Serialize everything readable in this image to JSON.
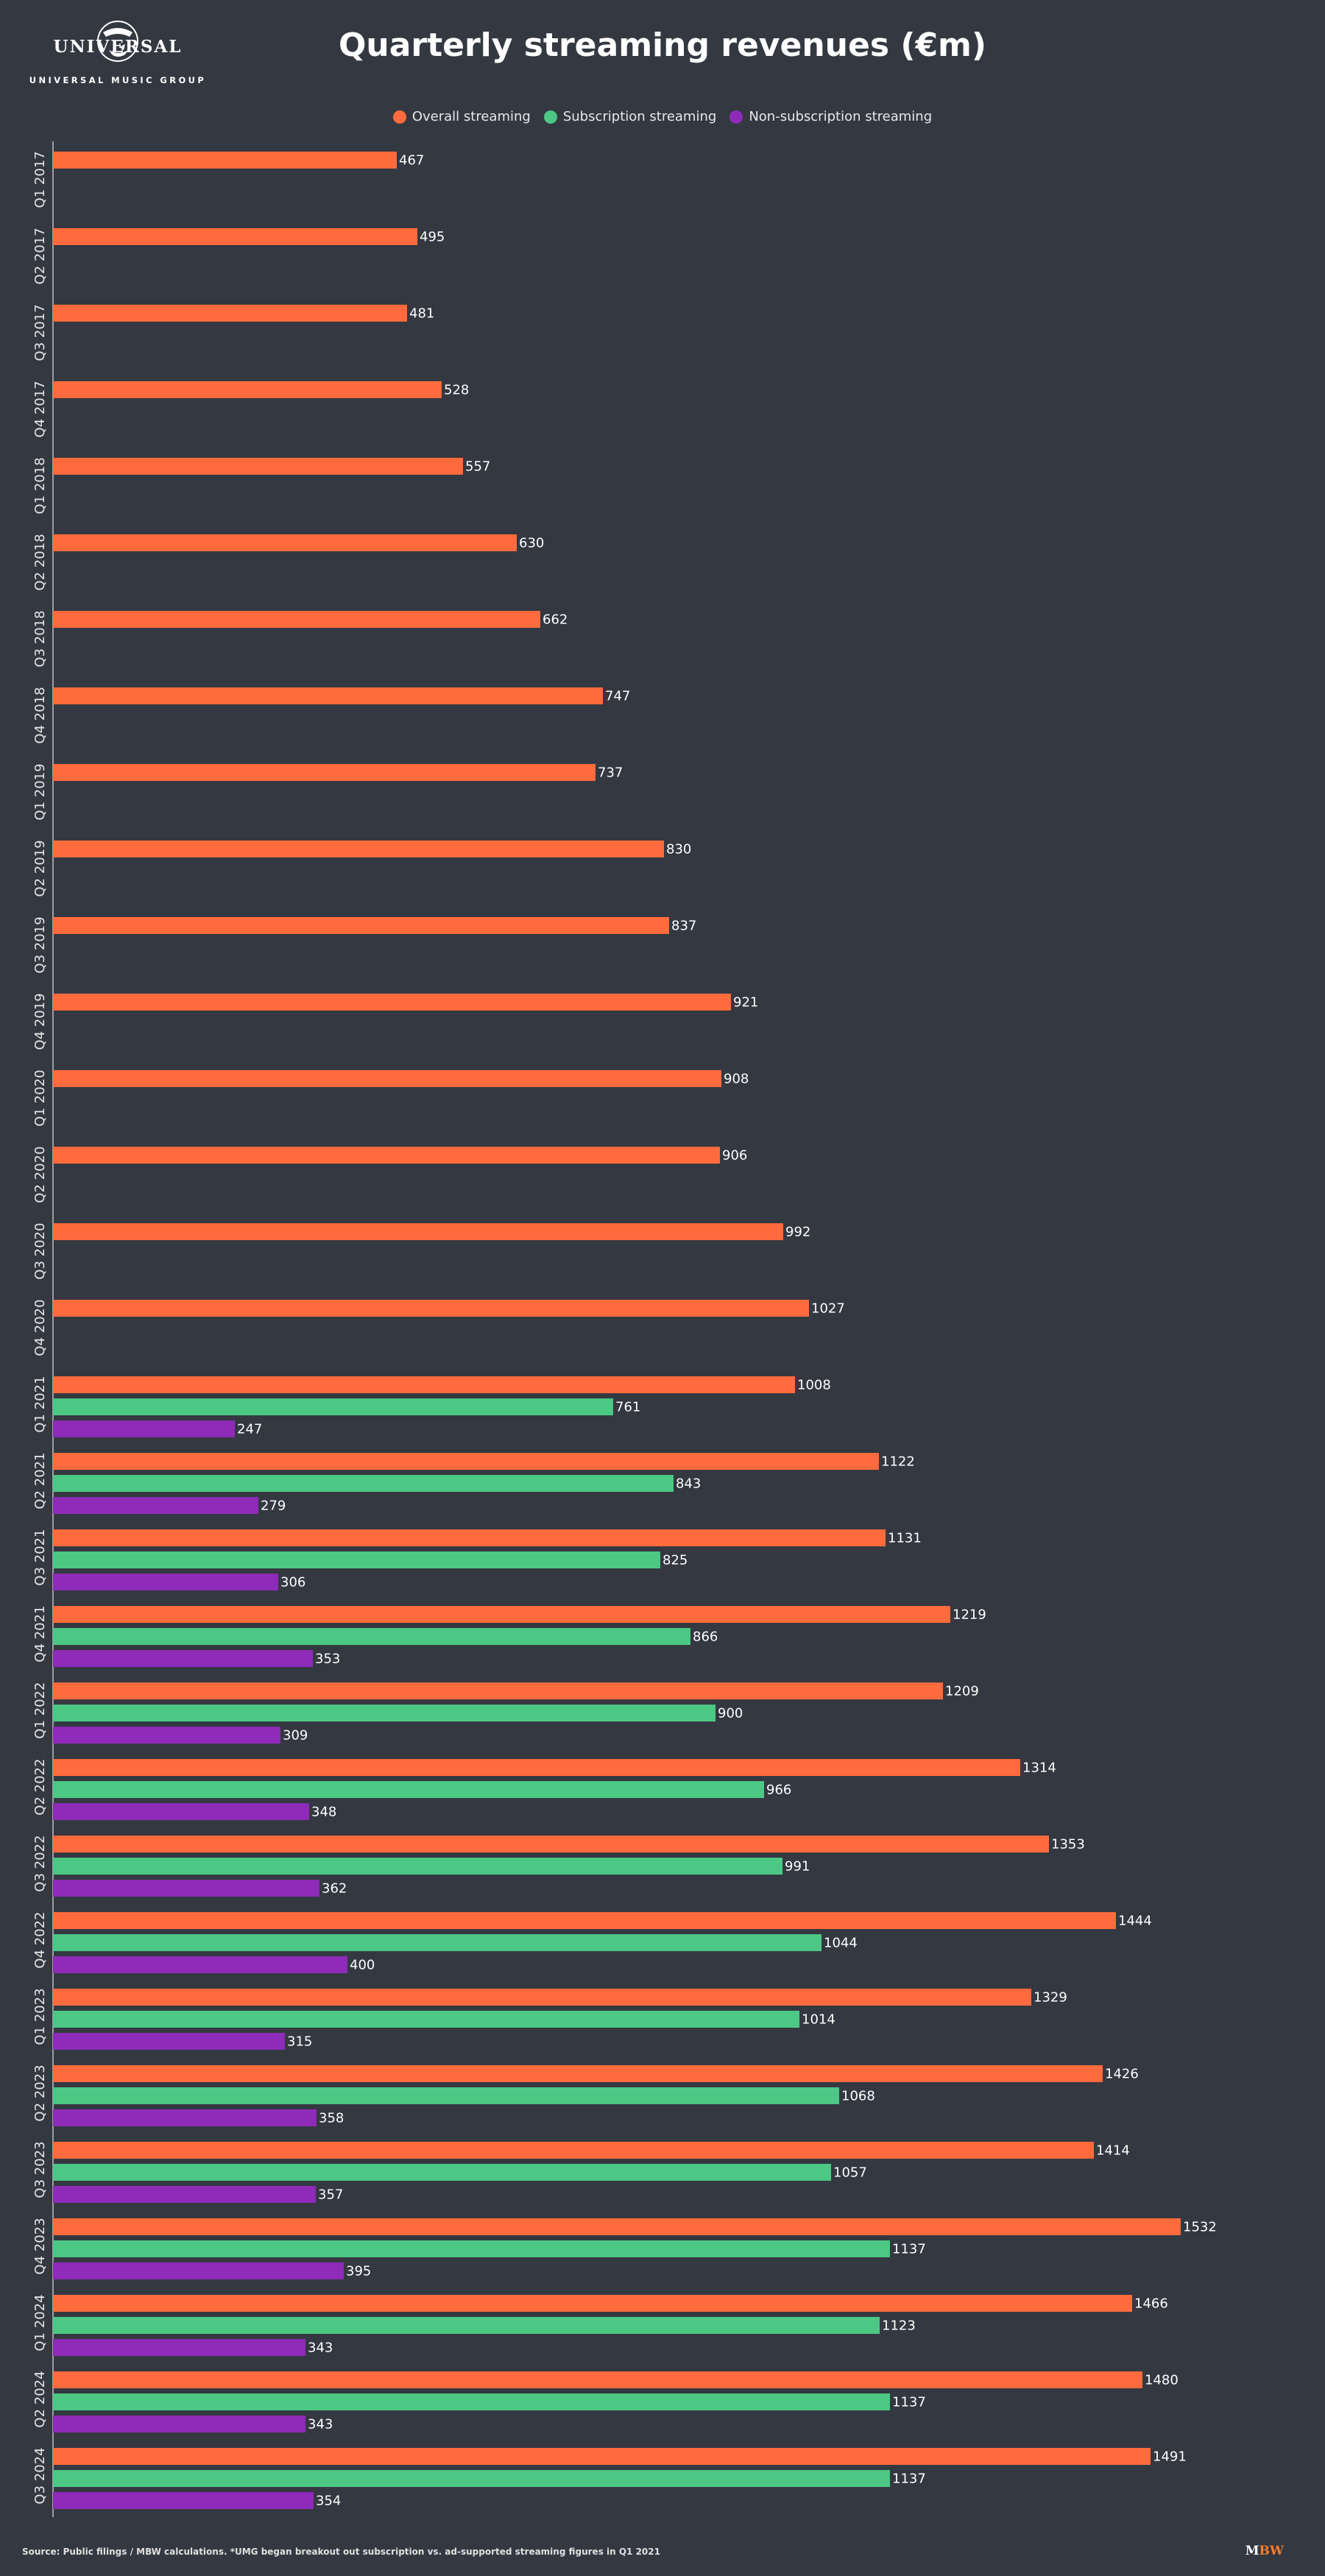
{
  "brand": {
    "logo_word": "UNIVERSAL",
    "logo_sub": "UNIVERSAL MUSIC GROUP",
    "mbw_m": "M",
    "mbw_bw": "BW"
  },
  "colors": {
    "background": "#343841",
    "overall": "#ff6b3d",
    "subscription": "#4cc784",
    "non_subscription": "#8e2bb8"
  },
  "footer": {
    "source": "Source: Public filings / MBW calculations. *UMG began breakout out subscription vs. ad-supported streaming figures in Q1 2021"
  },
  "chart_data": {
    "type": "bar",
    "orientation": "horizontal",
    "title": "Quarterly streaming revenues (€m)",
    "legend_position": "top-center",
    "grid": false,
    "xlim": [
      0,
      1600
    ],
    "categories": [
      "Q1 2017",
      "Q2 2017",
      "Q3 2017",
      "Q4 2017",
      "Q1 2018",
      "Q2 2018",
      "Q3 2018",
      "Q4 2018",
      "Q1 2019",
      "Q2 2019",
      "Q3 2019",
      "Q4 2019",
      "Q1 2020",
      "Q2 2020",
      "Q3 2020",
      "Q4 2020",
      "Q1 2021",
      "Q2 2021",
      "Q3 2021",
      "Q4 2021",
      "Q1 2022",
      "Q2 2022",
      "Q3 2022",
      "Q4 2022",
      "Q1 2023",
      "Q2 2023",
      "Q3 2023",
      "Q4 2023",
      "Q1 2024",
      "Q2 2024",
      "Q3 2024"
    ],
    "series": [
      {
        "name": "Overall streaming",
        "values": [
          467,
          495,
          481,
          528,
          557,
          630,
          662,
          747,
          737,
          830,
          837,
          921,
          908,
          906,
          992,
          1027,
          1008,
          1122,
          1131,
          1219,
          1209,
          1314,
          1353,
          1444,
          1329,
          1426,
          1414,
          1532,
          1466,
          1480,
          1491
        ]
      },
      {
        "name": "Subscription streaming",
        "values": [
          null,
          null,
          null,
          null,
          null,
          null,
          null,
          null,
          null,
          null,
          null,
          null,
          null,
          null,
          null,
          null,
          761,
          843,
          825,
          866,
          900,
          966,
          991,
          1044,
          1014,
          1068,
          1057,
          1137,
          1123,
          1137,
          1137
        ]
      },
      {
        "name": "Non-subscription streaming",
        "values": [
          null,
          null,
          null,
          null,
          null,
          null,
          null,
          null,
          null,
          null,
          null,
          null,
          null,
          null,
          null,
          null,
          247,
          279,
          306,
          353,
          309,
          348,
          362,
          400,
          315,
          358,
          357,
          395,
          343,
          343,
          354
        ]
      }
    ]
  }
}
